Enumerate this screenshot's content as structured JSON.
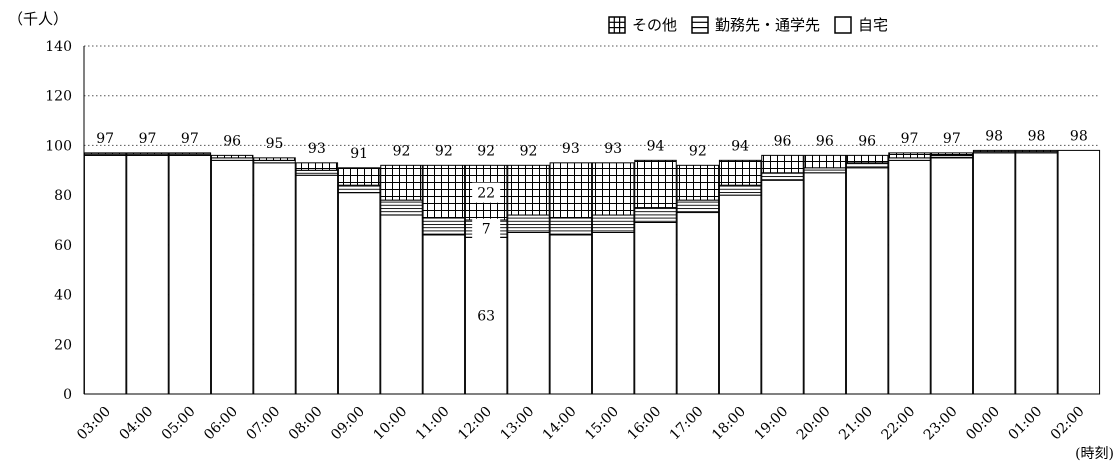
{
  "chart_data": {
    "type": "bar",
    "y_unit_label": "（千人）",
    "x_unit_label": "(時刻)",
    "ylim": [
      0,
      140
    ],
    "yticks": [
      0,
      20,
      40,
      60,
      80,
      100,
      120,
      140
    ],
    "grid": true,
    "legend_position": "top-right",
    "categories": [
      "03:00",
      "04:00",
      "05:00",
      "06:00",
      "07:00",
      "08:00",
      "09:00",
      "10:00",
      "11:00",
      "12:00",
      "13:00",
      "14:00",
      "15:00",
      "16:00",
      "17:00",
      "18:00",
      "19:00",
      "20:00",
      "21:00",
      "22:00",
      "23:00",
      "00:00",
      "01:00",
      "02:00"
    ],
    "series": [
      {
        "name": "自宅",
        "pattern": "plain",
        "values": [
          96,
          96,
          96,
          94,
          93,
          88,
          81,
          72,
          64,
          63,
          65,
          64,
          65,
          69,
          73,
          80,
          86,
          89,
          91,
          94,
          95,
          97,
          97,
          98
        ]
      },
      {
        "name": "勤務先・通学先",
        "pattern": "horizontal-lines",
        "values": [
          0.5,
          0.5,
          0.5,
          1,
          1,
          2,
          3,
          6,
          7,
          7,
          7,
          7,
          7,
          6,
          5,
          4,
          3,
          2,
          2,
          1,
          1,
          0.5,
          0.5,
          0
        ]
      },
      {
        "name": "その他",
        "pattern": "grid",
        "values": [
          0.5,
          0.5,
          0.5,
          1,
          1,
          3,
          7,
          14,
          21,
          22,
          20,
          22,
          21,
          19,
          14,
          10,
          7,
          5,
          3,
          2,
          1,
          0.5,
          0.5,
          0
        ]
      }
    ],
    "totals": [
      97,
      97,
      97,
      96,
      95,
      93,
      91,
      92,
      92,
      92,
      92,
      93,
      93,
      94,
      92,
      94,
      96,
      96,
      96,
      97,
      97,
      98,
      98,
      98
    ],
    "annotations": [
      {
        "category": "12:00",
        "series": "自宅",
        "text": "63"
      },
      {
        "category": "12:00",
        "series": "勤務先・通学先",
        "text": "7"
      },
      {
        "category": "12:00",
        "series": "その他",
        "text": "22"
      }
    ],
    "colors": {
      "fill": "#ffffff",
      "stroke": "#000000",
      "grid": "#555555"
    }
  }
}
